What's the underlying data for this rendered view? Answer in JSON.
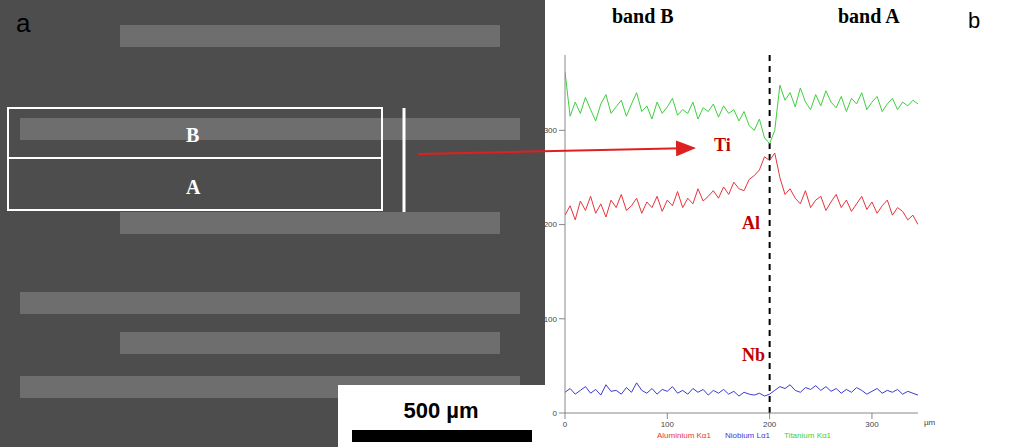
{
  "panel_letters": {
    "image": "a",
    "chart": "b"
  },
  "image": {
    "regions": [
      "B",
      "A"
    ],
    "scale_bar": "500 µm"
  },
  "chart_data": {
    "type": "line",
    "xlabel": "µm",
    "annotations": [
      "band B",
      "band A",
      "Ti",
      "Al",
      "Nb"
    ],
    "boundary_x": 200,
    "x": [
      0,
      5,
      10,
      15,
      20,
      25,
      30,
      35,
      40,
      45,
      50,
      55,
      60,
      65,
      70,
      75,
      80,
      85,
      90,
      95,
      100,
      105,
      110,
      115,
      120,
      125,
      130,
      135,
      140,
      145,
      150,
      155,
      160,
      165,
      170,
      175,
      180,
      185,
      190,
      195,
      200,
      205,
      210,
      215,
      220,
      225,
      230,
      235,
      240,
      245,
      250,
      255,
      260,
      265,
      270,
      275,
      280,
      285,
      290,
      295,
      300,
      305,
      310,
      315,
      320,
      325,
      330,
      335,
      340,
      345
    ],
    "series": [
      {
        "name": "Niobium Lα1",
        "color": "#3b3bd6",
        "values": [
          22,
          26,
          20,
          24,
          28,
          21,
          25,
          19,
          30,
          23,
          24,
          20,
          27,
          22,
          32,
          24,
          21,
          26,
          20,
          25,
          23,
          28,
          21,
          24,
          20,
          26,
          22,
          25,
          19,
          24,
          21,
          25,
          20,
          23,
          18,
          22,
          20,
          19,
          21,
          18,
          20,
          24,
          28,
          26,
          30,
          24,
          22,
          27,
          25,
          29,
          24,
          28,
          23,
          26,
          21,
          25,
          22,
          27,
          24,
          20,
          23,
          26,
          21,
          24,
          22,
          25,
          20,
          23,
          21,
          19
        ]
      },
      {
        "name": "Titanium Kα1",
        "color": "#3ecf3e",
        "values": [
          362,
          315,
          330,
          318,
          335,
          322,
          310,
          328,
          338,
          318,
          325,
          332,
          315,
          328,
          340,
          320,
          326,
          312,
          330,
          318,
          325,
          334,
          316,
          322,
          318,
          330,
          312,
          324,
          320,
          328,
          314,
          326,
          318,
          322,
          310,
          320,
          305,
          300,
          312,
          292,
          286,
          300,
          348,
          332,
          340,
          325,
          345,
          330,
          322,
          338,
          326,
          342,
          330,
          324,
          336,
          320,
          334,
          328,
          340,
          322,
          330,
          336,
          320,
          328,
          334,
          322,
          330,
          326,
          332,
          328
        ]
      },
      {
        "name": "Aluminium Kα1",
        "color": "#e8343c",
        "values": [
          210,
          220,
          205,
          225,
          215,
          230,
          212,
          222,
          208,
          226,
          218,
          232,
          215,
          220,
          228,
          212,
          224,
          218,
          230,
          214,
          226,
          220,
          235,
          218,
          228,
          222,
          238,
          225,
          230,
          236,
          228,
          240,
          232,
          245,
          238,
          236,
          248,
          252,
          258,
          272,
          268,
          276,
          250,
          232,
          238,
          228,
          222,
          236,
          218,
          226,
          230,
          215,
          224,
          232,
          218,
          226,
          214,
          222,
          230,
          216,
          224,
          212,
          220,
          226,
          210,
          218,
          214,
          205,
          210,
          200
        ]
      }
    ],
    "xlim": [
      0,
      345
    ],
    "xticks": [
      0,
      100,
      200,
      300
    ],
    "ylim": [
      0,
      380
    ],
    "yticks": [
      0,
      100,
      200,
      300
    ],
    "grid": false,
    "legend": "bottom"
  }
}
